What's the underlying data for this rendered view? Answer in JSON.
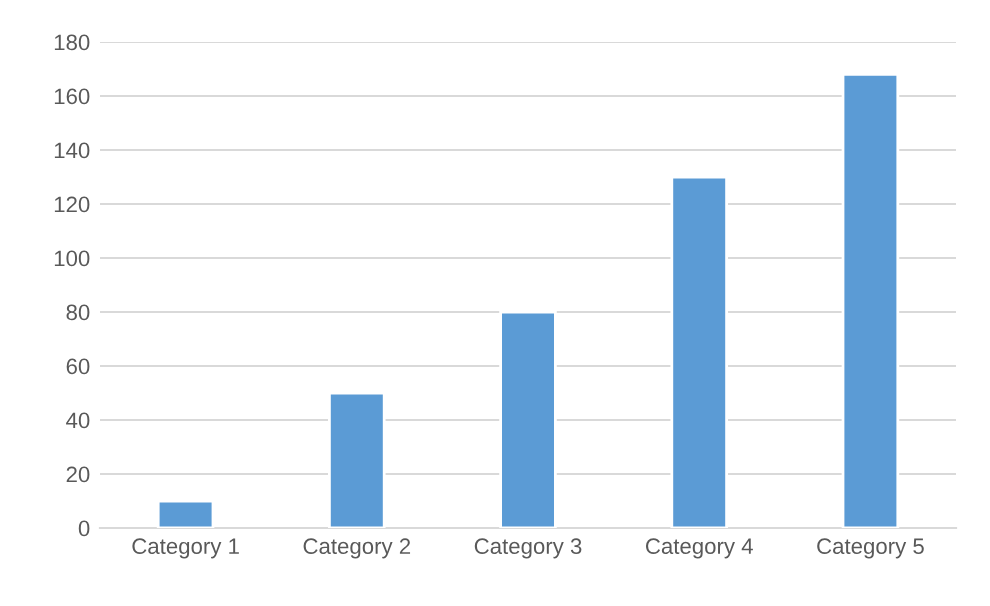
{
  "chart_data": {
    "type": "bar",
    "categories": [
      "Category 1",
      "Category 2",
      "Category 3",
      "Category 4",
      "Category 5"
    ],
    "values": [
      10,
      50,
      80,
      130,
      168
    ],
    "color": "#5b9bd5",
    "ylim": [
      0,
      180
    ],
    "yticks": [
      0,
      20,
      40,
      60,
      80,
      100,
      120,
      140,
      160,
      180
    ],
    "grid": "y"
  }
}
